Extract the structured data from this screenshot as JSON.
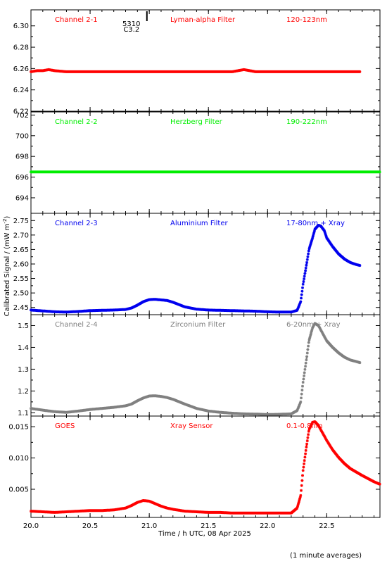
{
  "x_axis_label": "Time / h UTC, 08 Apr 2025",
  "y_axis_label": "Calibrated Signal / (mW m",
  "y_axis_label_exp": "-2",
  "y_axis_label_end": ")",
  "footer": "(1 minute averages)",
  "flare_marker": {
    "x": 20.98,
    "label_top": "5310",
    "label_bottom": "C3.2"
  },
  "x_range": [
    20.0,
    22.95
  ],
  "x_ticks": [
    "20.0",
    "20.5",
    "21.0",
    "21.5",
    "22.0",
    "22.5"
  ],
  "x_tick_values": [
    20.0,
    20.5,
    21.0,
    21.5,
    22.0,
    22.5
  ],
  "chart_data": [
    {
      "type": "scatter",
      "channel": "Channel 2-1",
      "filter": "Lyman-alpha Filter",
      "band": "120-123nm",
      "color": "#ff0000",
      "ylim": [
        6.22,
        6.315
      ],
      "y_ticks": [
        "6.22",
        "6.24",
        "6.26",
        "6.28",
        "6.30"
      ],
      "y_tick_values": [
        6.22,
        6.24,
        6.26,
        6.28,
        6.3
      ],
      "x": [
        20.0,
        20.05,
        20.1,
        20.15,
        20.2,
        20.3,
        20.4,
        20.5,
        20.6,
        20.7,
        20.8,
        20.9,
        21.0,
        21.1,
        21.2,
        21.3,
        21.4,
        21.5,
        21.6,
        21.7,
        21.75,
        21.8,
        21.85,
        21.9,
        22.0,
        22.1,
        22.2,
        22.3,
        22.4,
        22.5,
        22.6,
        22.7,
        22.78
      ],
      "y": [
        6.257,
        6.258,
        6.258,
        6.259,
        6.258,
        6.257,
        6.257,
        6.257,
        6.257,
        6.257,
        6.257,
        6.257,
        6.257,
        6.257,
        6.257,
        6.257,
        6.257,
        6.257,
        6.257,
        6.257,
        6.258,
        6.259,
        6.258,
        6.257,
        6.257,
        6.257,
        6.257,
        6.257,
        6.257,
        6.257,
        6.257,
        6.257,
        6.257
      ]
    },
    {
      "type": "scatter",
      "channel": "Channel 2-2",
      "filter": "Herzberg Filter",
      "band": "190-222nm",
      "color": "#00ee00",
      "ylim": [
        692.5,
        702.3
      ],
      "y_ticks": [
        "694",
        "696",
        "698",
        "700",
        "702"
      ],
      "y_tick_values": [
        694,
        696,
        698,
        700,
        702
      ],
      "x": [
        20.0,
        20.2,
        20.4,
        20.6,
        20.8,
        21.0,
        21.2,
        21.4,
        21.6,
        21.8,
        22.0,
        22.2,
        22.4,
        22.6,
        22.8,
        22.95
      ],
      "y": [
        696.5,
        696.5,
        696.5,
        696.5,
        696.5,
        696.5,
        696.5,
        696.5,
        696.5,
        696.5,
        696.5,
        696.5,
        696.5,
        696.5,
        696.5,
        696.5
      ]
    },
    {
      "type": "scatter",
      "channel": "Channel 2-3",
      "filter": "Aluminium Filter",
      "band": "17-80nm + Xray",
      "color": "#0000ee",
      "ylim": [
        2.425,
        2.775
      ],
      "y_ticks": [
        "2.45",
        "2.50",
        "2.55",
        "2.60",
        "2.65",
        "2.70",
        "2.75"
      ],
      "y_tick_values": [
        2.45,
        2.5,
        2.55,
        2.6,
        2.65,
        2.7,
        2.75
      ],
      "x": [
        20.0,
        20.1,
        20.2,
        20.3,
        20.4,
        20.5,
        20.6,
        20.7,
        20.8,
        20.85,
        20.9,
        20.95,
        21.0,
        21.05,
        21.1,
        21.15,
        21.2,
        21.3,
        21.4,
        21.5,
        21.6,
        21.7,
        21.8,
        21.9,
        22.0,
        22.1,
        22.2,
        22.25,
        22.28,
        22.3,
        22.33,
        22.35,
        22.38,
        22.4,
        22.43,
        22.45,
        22.48,
        22.5,
        22.55,
        22.6,
        22.65,
        22.7,
        22.75,
        22.78
      ],
      "y": [
        2.441,
        2.438,
        2.435,
        2.434,
        2.436,
        2.439,
        2.44,
        2.441,
        2.443,
        2.448,
        2.458,
        2.47,
        2.477,
        2.478,
        2.476,
        2.474,
        2.468,
        2.452,
        2.444,
        2.441,
        2.44,
        2.439,
        2.438,
        2.437,
        2.435,
        2.434,
        2.434,
        2.44,
        2.47,
        2.53,
        2.6,
        2.65,
        2.69,
        2.72,
        2.734,
        2.731,
        2.715,
        2.69,
        2.66,
        2.635,
        2.617,
        2.605,
        2.598,
        2.595
      ]
    },
    {
      "type": "scatter",
      "channel": "Channel 2-4",
      "filter": "Zirconium Filter",
      "band": "6-20nm + Xray",
      "color": "#808080",
      "ylim": [
        1.085,
        1.55
      ],
      "y_ticks": [
        "1.1",
        "1.2",
        "1.3",
        "1.4",
        "1.5"
      ],
      "y_tick_values": [
        1.1,
        1.2,
        1.3,
        1.4,
        1.5
      ],
      "x": [
        20.0,
        20.1,
        20.2,
        20.3,
        20.4,
        20.5,
        20.6,
        20.7,
        20.8,
        20.85,
        20.9,
        20.95,
        21.0,
        21.05,
        21.1,
        21.15,
        21.2,
        21.3,
        21.4,
        21.5,
        21.6,
        21.7,
        21.8,
        21.9,
        22.0,
        22.1,
        22.2,
        22.25,
        22.28,
        22.3,
        22.33,
        22.35,
        22.38,
        22.4,
        22.43,
        22.45,
        22.48,
        22.5,
        22.55,
        22.6,
        22.65,
        22.7,
        22.75,
        22.78
      ],
      "y": [
        1.12,
        1.112,
        1.105,
        1.102,
        1.108,
        1.115,
        1.12,
        1.125,
        1.132,
        1.14,
        1.155,
        1.168,
        1.177,
        1.178,
        1.175,
        1.17,
        1.162,
        1.14,
        1.12,
        1.108,
        1.102,
        1.098,
        1.095,
        1.094,
        1.092,
        1.093,
        1.095,
        1.11,
        1.15,
        1.24,
        1.35,
        1.43,
        1.49,
        1.51,
        1.5,
        1.48,
        1.45,
        1.43,
        1.4,
        1.375,
        1.355,
        1.342,
        1.335,
        1.33
      ]
    },
    {
      "type": "scatter",
      "channel": "GOES",
      "filter": "Xray Sensor",
      "band": "0.1-0.8nm",
      "color": "#ff0000",
      "ylim": [
        0.0005,
        0.0167
      ],
      "y_ticks": [
        "0.005",
        "0.010",
        "0.015"
      ],
      "y_tick_values": [
        0.005,
        0.01,
        0.015
      ],
      "x": [
        20.0,
        20.1,
        20.2,
        20.3,
        20.4,
        20.5,
        20.6,
        20.7,
        20.8,
        20.85,
        20.9,
        20.95,
        21.0,
        21.05,
        21.1,
        21.15,
        21.2,
        21.3,
        21.4,
        21.5,
        21.6,
        21.7,
        21.8,
        21.9,
        22.0,
        22.1,
        22.2,
        22.25,
        22.28,
        22.3,
        22.33,
        22.35,
        22.38,
        22.4,
        22.43,
        22.45,
        22.48,
        22.5,
        22.55,
        22.6,
        22.65,
        22.7,
        22.8,
        22.9,
        22.95
      ],
      "y": [
        0.0015,
        0.0014,
        0.0013,
        0.0014,
        0.0015,
        0.0016,
        0.0016,
        0.0017,
        0.002,
        0.0024,
        0.0029,
        0.0032,
        0.0031,
        0.0027,
        0.0023,
        0.002,
        0.0018,
        0.0015,
        0.0014,
        0.0013,
        0.0013,
        0.0012,
        0.0012,
        0.0012,
        0.0012,
        0.0012,
        0.0012,
        0.002,
        0.004,
        0.008,
        0.012,
        0.0145,
        0.0157,
        0.0158,
        0.0152,
        0.0145,
        0.0135,
        0.0128,
        0.0113,
        0.0101,
        0.0091,
        0.0083,
        0.0072,
        0.0062,
        0.0058
      ]
    }
  ]
}
